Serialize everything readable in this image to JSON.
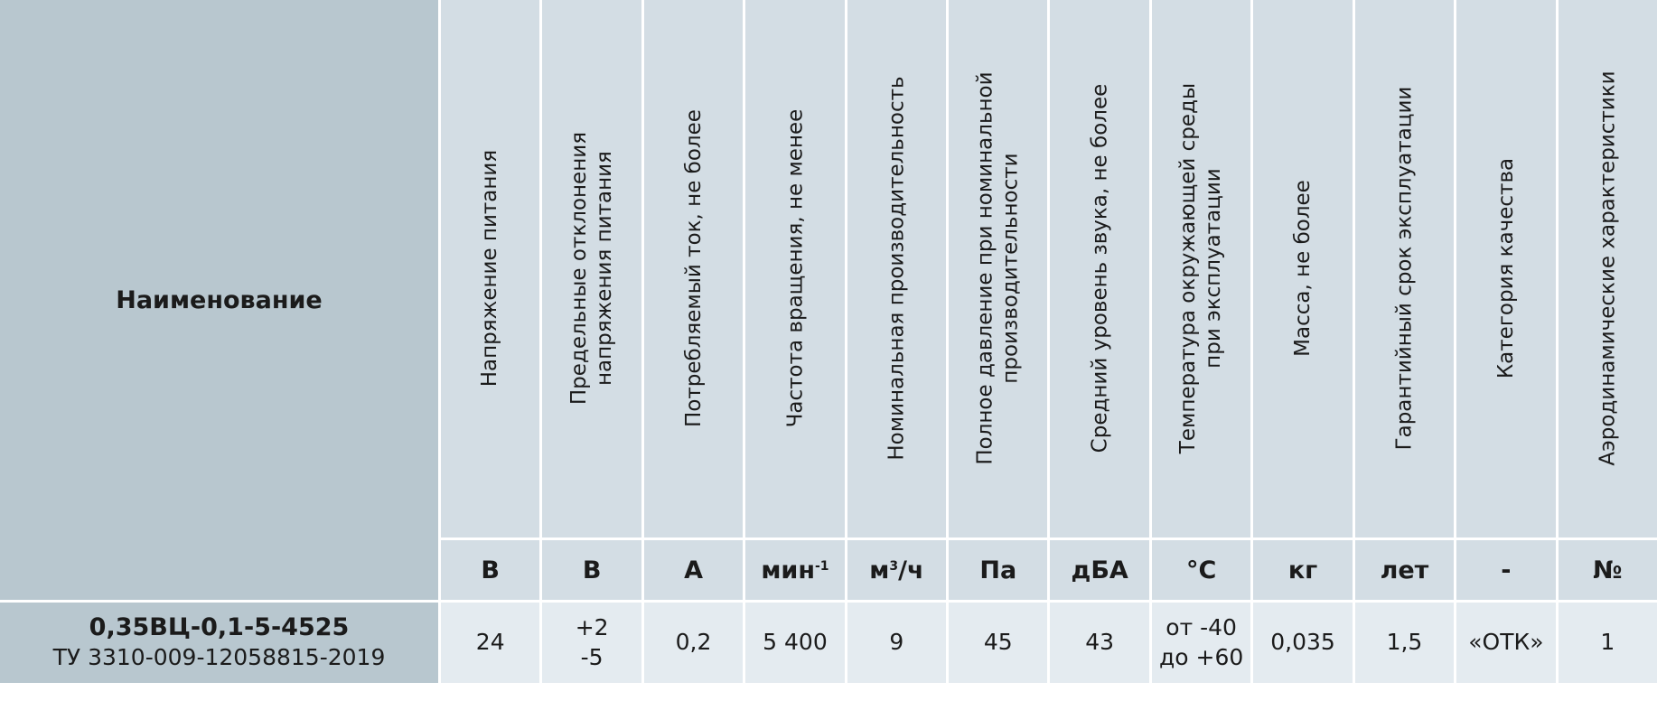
{
  "table": {
    "name_header": "Наименование",
    "columns": [
      {
        "lines": [
          "Напряжение питания"
        ],
        "unit": "В"
      },
      {
        "lines": [
          "Предельные отклонения",
          "напряжения питания"
        ],
        "unit": "В"
      },
      {
        "lines": [
          "Потребляемый ток, не более"
        ],
        "unit": "А"
      },
      {
        "lines": [
          "Частота вращения, не менее"
        ],
        "unit": "мин",
        "unit_sup": "-1"
      },
      {
        "lines": [
          "Номинальная производительность"
        ],
        "unit": "м",
        "unit_sup": "3",
        "unit_suffix": "/ч"
      },
      {
        "lines": [
          "Полное давление при номинальной",
          "производительности"
        ],
        "unit": "Па"
      },
      {
        "lines": [
          "Средний уровень звука, не более"
        ],
        "unit": "дБА"
      },
      {
        "lines": [
          "Температура окружающей среды",
          "при эксплуатации"
        ],
        "unit": "°С"
      },
      {
        "lines": [
          "Масса, не более"
        ],
        "unit": "кг"
      },
      {
        "lines": [
          "Гарантийный срок эксплуатации"
        ],
        "unit": "лет"
      },
      {
        "lines": [
          "Категория качества"
        ],
        "unit": "-"
      },
      {
        "lines": [
          "Аэродинамические характеристики"
        ],
        "unit": "№"
      }
    ],
    "row": {
      "model": "0,35ВЦ-0,1-5-4525",
      "spec": "ТУ 3310-009-12058815-2019",
      "values": [
        [
          "24"
        ],
        [
          "+2",
          "-5"
        ],
        [
          "0,2"
        ],
        [
          "5 400"
        ],
        [
          "9"
        ],
        [
          "45"
        ],
        [
          "43"
        ],
        [
          "от -40",
          "до +60"
        ],
        [
          "0,035"
        ],
        [
          "1,5"
        ],
        [
          "«ОТК»"
        ],
        [
          "1"
        ]
      ]
    }
  }
}
